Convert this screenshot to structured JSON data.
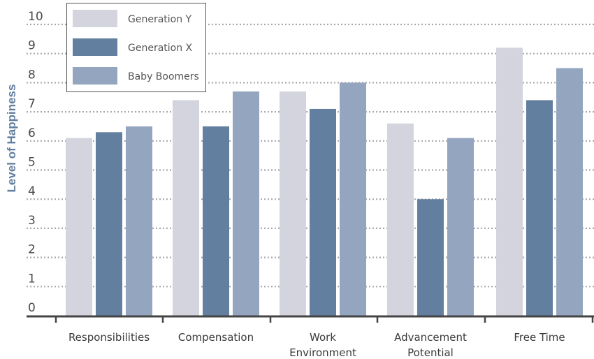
{
  "chart_data": {
    "type": "bar",
    "title": "",
    "xlabel": "",
    "ylabel": "Level of Happiness",
    "ylim": [
      0,
      10
    ],
    "yticks": [
      0,
      1,
      2,
      3,
      4,
      5,
      6,
      7,
      8,
      9,
      10
    ],
    "grid": true,
    "legend_position": "top-left",
    "categories": [
      "Responsibilities",
      "Compensation",
      "Work Environment",
      "Advancement Potential",
      "Free Time"
    ],
    "category_lines": [
      [
        "Responsibilities"
      ],
      [
        "Compensation"
      ],
      [
        "Work",
        "Environment"
      ],
      [
        "Advancement",
        "Potential"
      ],
      [
        "Free Time"
      ]
    ],
    "series": [
      {
        "name": "Generation Y",
        "color": "#d3d4de",
        "values": [
          6.1,
          7.4,
          7.7,
          6.6,
          9.2
        ]
      },
      {
        "name": "Generation X",
        "color": "#627f9f",
        "values": [
          6.3,
          6.5,
          7.1,
          4.0,
          7.4
        ]
      },
      {
        "name": "Baby Boomers",
        "color": "#94a6bf",
        "values": [
          6.5,
          7.7,
          8.0,
          6.1,
          8.5
        ]
      }
    ],
    "colors": {
      "axis": "#444444",
      "grid": "#a8a8b0",
      "ylabel": "#627f9f"
    }
  }
}
